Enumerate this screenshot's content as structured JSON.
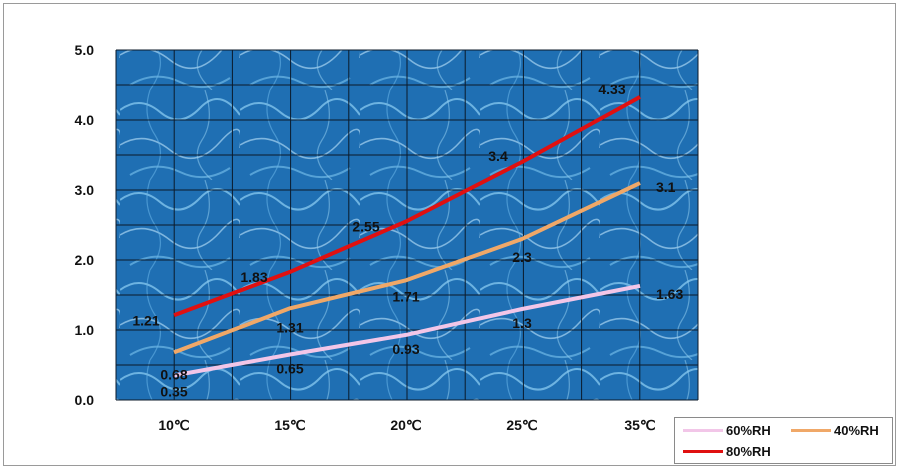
{
  "chart_data": {
    "type": "line",
    "title": "",
    "xlabel": "",
    "ylabel": "",
    "categories": [
      "10℃",
      "15℃",
      "20℃",
      "25℃",
      "35℃"
    ],
    "y_tick_labels": [
      "0.0",
      "1.0",
      "2.0",
      "3.0",
      "4.0",
      "5.0"
    ],
    "ylim": [
      0,
      5
    ],
    "grid": true,
    "legend_position": "bottom-right",
    "series": [
      {
        "name": "60%RH",
        "color": "#f2c6e8",
        "values": [
          0.35,
          0.65,
          0.93,
          1.3,
          1.63
        ],
        "labels": [
          "0.35",
          "0.65",
          "0.93",
          "1.3",
          "1.63"
        ]
      },
      {
        "name": "40%RH",
        "color": "#f0a868",
        "values": [
          0.68,
          1.31,
          1.71,
          2.3,
          3.1
        ],
        "labels": [
          "0.68",
          "1.31",
          "1.71",
          "2.3",
          "3.1"
        ]
      },
      {
        "name": "80%RH",
        "color": "#e01010",
        "values": [
          1.21,
          1.83,
          2.55,
          3.4,
          4.33
        ],
        "labels": [
          "1.21",
          "1.83",
          "2.55",
          "3.4",
          "4.33"
        ]
      }
    ]
  }
}
